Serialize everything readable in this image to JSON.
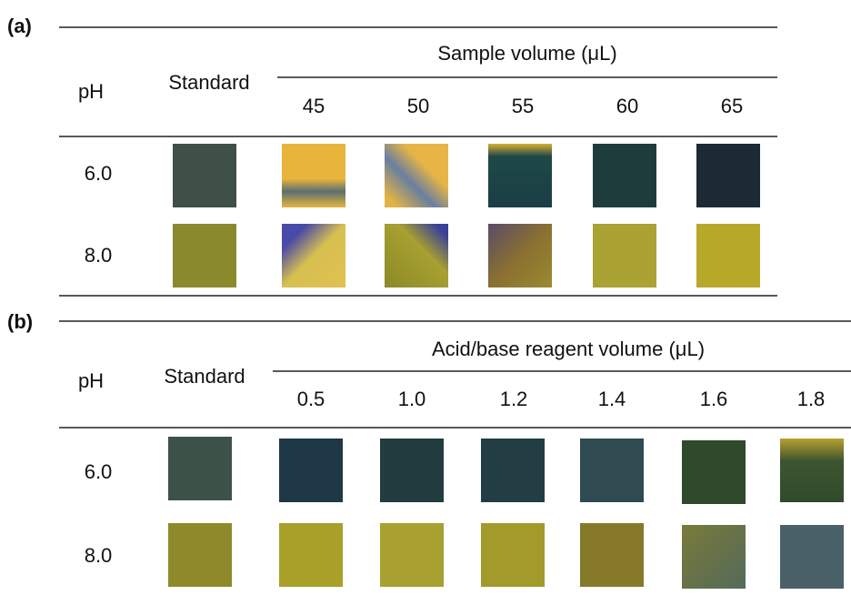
{
  "panel_a": {
    "label": "(a)",
    "row_header": "pH",
    "standard_header": "Standard",
    "group_header": "Sample volume (μL)",
    "columns": [
      "45",
      "50",
      "55",
      "60",
      "65"
    ],
    "rows": [
      "6.0",
      "8.0"
    ]
  },
  "panel_b": {
    "label": "(b)",
    "row_header": "pH",
    "standard_header": "Standard",
    "group_header": "Acid/base reagent volume (μL)",
    "columns": [
      "0.5",
      "1.0",
      "1.2",
      "1.4",
      "1.6",
      "1.8"
    ],
    "rows": [
      "6.0",
      "8.0"
    ]
  }
}
